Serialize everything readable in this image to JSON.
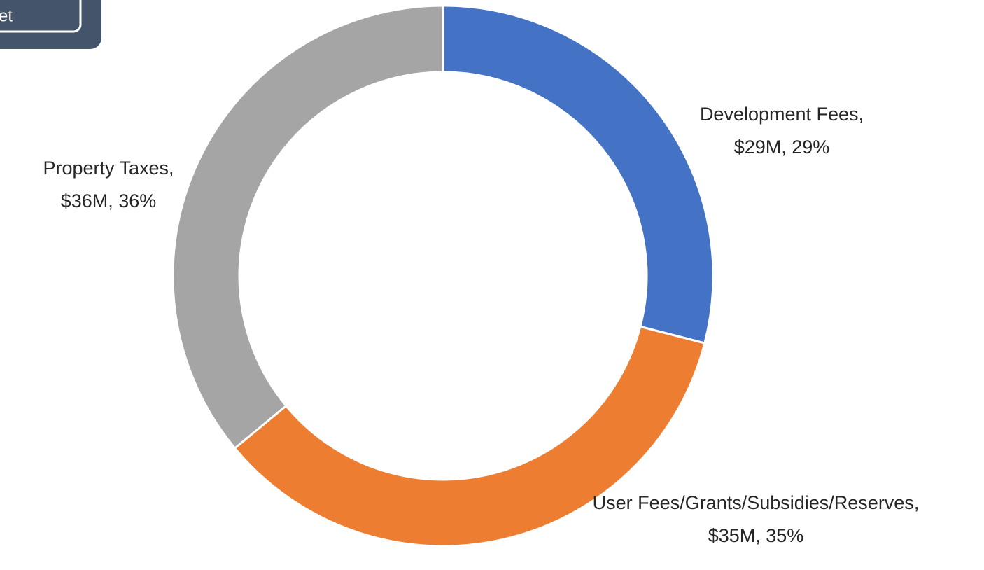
{
  "tab_label": "et",
  "chart_data": {
    "type": "donut",
    "categories": [
      "Development Fees,",
      "User Fees/Grants/Subsidies/Reserves,",
      "Property Taxes,"
    ],
    "values": [
      29,
      35,
      36
    ],
    "value_labels": [
      "$29M, 29%",
      "$35M, 35%",
      "$36M, 36%"
    ],
    "colors": [
      "#4472c4",
      "#ed7d31",
      "#a5a5a5"
    ]
  }
}
